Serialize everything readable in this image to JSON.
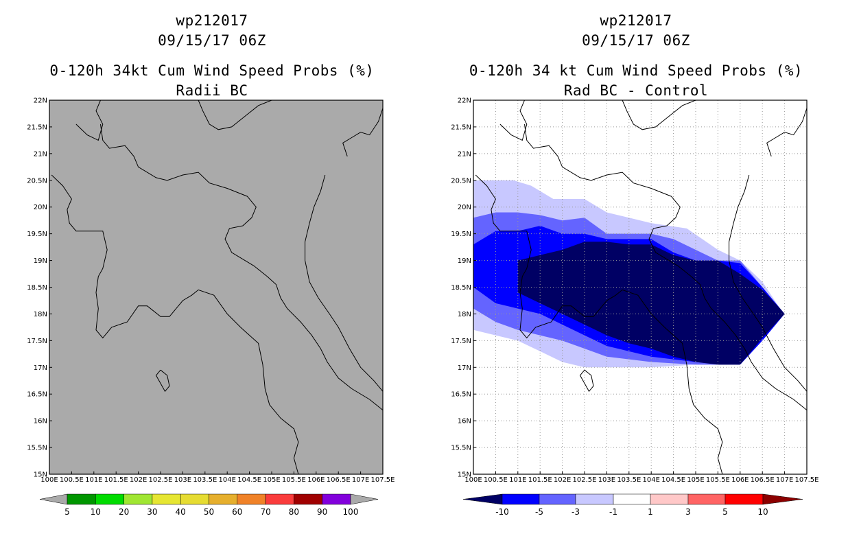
{
  "colors": {
    "land_gray": "#aaaaaa",
    "frame": "#000000",
    "grid": "#999999",
    "diff_neg10": "#000064",
    "diff_neg5": "#0000ff",
    "diff_neg3": "#6464ff",
    "diff_neg1": "#c8c8ff",
    "diff_0": "#ffffff",
    "diff_pos1": "#ffc8c8",
    "diff_pos3": "#ff6464",
    "diff_pos5": "#ff0000",
    "diff_pos10": "#8c0000"
  },
  "left": {
    "title_line1": "wp212017",
    "title_line2": "09/15/17 06Z",
    "title_line3": "0-120h 34kt Cum Wind Speed Probs (%)",
    "title_line4": "Radii BC",
    "colorbar": {
      "labels": [
        "5",
        "10",
        "20",
        "30",
        "40",
        "50",
        "60",
        "70",
        "80",
        "90",
        "100"
      ],
      "colors": [
        "#009600",
        "#00dc00",
        "#a0e632",
        "#e6e632",
        "#e6dc32",
        "#e6af2d",
        "#f08228",
        "#fa3c3c",
        "#a00000",
        "#8200dc"
      ]
    }
  },
  "right": {
    "title_line1": "wp212017",
    "title_line2": "09/15/17 06Z",
    "title_line3": "0-120h 34 kt Cum Wind Speed Probs (%)",
    "title_line4": "Rad BC - Control",
    "colorbar": {
      "labels": [
        "-10",
        "-5",
        "-3",
        "-1",
        "1",
        "3",
        "5",
        "10"
      ],
      "colors": [
        "#000064",
        "#0000ff",
        "#6464ff",
        "#c8c8ff",
        "#ffffff",
        "#ffc8c8",
        "#ff6464",
        "#ff0000"
      ],
      "end_left": "#000064",
      "end_right": "#8c0000"
    }
  },
  "chart_data": [
    {
      "type": "heatmap",
      "title": "0-120h 34kt Cum Wind Speed Probs (%) - Radii BC",
      "x_ticks": [
        "100E",
        "100.5E",
        "101E",
        "101.5E",
        "102E",
        "102.5E",
        "103E",
        "103.5E",
        "104E",
        "104.5E",
        "105E",
        "105.5E",
        "106E",
        "106.5E",
        "107E",
        "107.5E"
      ],
      "y_ticks": [
        "15N",
        "15.5N",
        "16N",
        "16.5N",
        "17N",
        "17.5N",
        "18N",
        "18.5N",
        "19N",
        "19.5N",
        "20N",
        "20.5N",
        "21N",
        "21.5N",
        "22N"
      ],
      "xlim": [
        100,
        107.5
      ],
      "ylim": [
        15,
        22
      ],
      "grid": false,
      "field": "no probability above 5% anywhere in domain (uniform gray)"
    },
    {
      "type": "heatmap",
      "title": "0-120h 34 kt Cum Wind Speed Probs (%) - Rad BC - Control",
      "x_ticks": [
        "100E",
        "100.5E",
        "101E",
        "101.5E",
        "102E",
        "102.5E",
        "103E",
        "103.5E",
        "104E",
        "104.5E",
        "105E",
        "105.5E",
        "106E",
        "106.5E",
        "107E",
        "107.5E"
      ],
      "y_ticks": [
        "15N",
        "15.5N",
        "16N",
        "16.5N",
        "17N",
        "17.5N",
        "18N",
        "18.5N",
        "19N",
        "19.5N",
        "20N",
        "20.5N",
        "21N",
        "21.5N",
        "22N"
      ],
      "xlim": [
        100,
        107.5
      ],
      "ylim": [
        15,
        22
      ],
      "grid": true,
      "levels": [
        {
          "range": "-3 to -1",
          "polygon": [
            [
              100,
              20.5
            ],
            [
              100.9,
              20.5
            ],
            [
              101.3,
              20.4
            ],
            [
              101.8,
              20.15
            ],
            [
              102.5,
              20.15
            ],
            [
              103,
              19.9
            ],
            [
              103.5,
              19.8
            ],
            [
              104,
              19.7
            ],
            [
              104.8,
              19.6
            ],
            [
              105.5,
              19.2
            ],
            [
              106,
              19.0
            ],
            [
              106.5,
              18.6
            ],
            [
              106.9,
              18.1
            ],
            [
              107,
              18
            ],
            [
              106.5,
              17.5
            ],
            [
              106,
              17.05
            ],
            [
              105,
              17.05
            ],
            [
              104,
              17.0
            ],
            [
              103,
              17.0
            ],
            [
              102.5,
              17.0
            ],
            [
              102,
              17.1
            ],
            [
              101.5,
              17.3
            ],
            [
              101,
              17.5
            ],
            [
              100.5,
              17.6
            ],
            [
              100,
              17.7
            ]
          ]
        },
        {
          "range": "-5 to -3",
          "polygon": [
            [
              100,
              19.8
            ],
            [
              100.5,
              19.9
            ],
            [
              101,
              19.9
            ],
            [
              101.5,
              19.85
            ],
            [
              102,
              19.75
            ],
            [
              102.5,
              19.8
            ],
            [
              103,
              19.5
            ],
            [
              103.5,
              19.5
            ],
            [
              104,
              19.5
            ],
            [
              104.5,
              19.4
            ],
            [
              105,
              19.2
            ],
            [
              105.5,
              19.0
            ],
            [
              106,
              19.0
            ],
            [
              106.5,
              18.5
            ],
            [
              106.9,
              18.1
            ],
            [
              107,
              18
            ],
            [
              106.5,
              17.6
            ],
            [
              106,
              17.05
            ],
            [
              105,
              17.05
            ],
            [
              104,
              17.1
            ],
            [
              103,
              17.2
            ],
            [
              102.5,
              17.35
            ],
            [
              102,
              17.5
            ],
            [
              101.5,
              17.6
            ],
            [
              101,
              17.7
            ],
            [
              100.5,
              17.85
            ],
            [
              100,
              18.1
            ]
          ]
        },
        {
          "range": "-10 to -5",
          "polygon": [
            [
              100,
              19.3
            ],
            [
              100.5,
              19.55
            ],
            [
              101,
              19.55
            ],
            [
              101.5,
              19.65
            ],
            [
              102,
              19.5
            ],
            [
              102.5,
              19.5
            ],
            [
              103,
              19.4
            ],
            [
              103.5,
              19.4
            ],
            [
              104,
              19.4
            ],
            [
              104.5,
              19.15
            ],
            [
              105,
              19.0
            ],
            [
              105.5,
              19.0
            ],
            [
              106,
              18.95
            ],
            [
              106.5,
              18.5
            ],
            [
              106.9,
              18.1
            ],
            [
              107,
              18
            ],
            [
              106.5,
              17.5
            ],
            [
              106,
              17.05
            ],
            [
              105,
              17.1
            ],
            [
              104,
              17.2
            ],
            [
              103,
              17.4
            ],
            [
              102.5,
              17.6
            ],
            [
              102,
              17.8
            ],
            [
              101.5,
              18.0
            ],
            [
              101,
              18.1
            ],
            [
              100.5,
              18.2
            ],
            [
              100,
              18.5
            ]
          ]
        },
        {
          "range": "< -10",
          "polygon": [
            [
              101,
              19.0
            ],
            [
              101.5,
              19.1
            ],
            [
              102,
              19.2
            ],
            [
              102.5,
              19.35
            ],
            [
              103,
              19.35
            ],
            [
              103.5,
              19.3
            ],
            [
              104,
              19.3
            ],
            [
              104.5,
              19.1
            ],
            [
              105,
              19.0
            ],
            [
              105.5,
              19.0
            ],
            [
              106,
              18.75
            ],
            [
              106.5,
              18.45
            ],
            [
              106.9,
              18.1
            ],
            [
              107,
              18
            ],
            [
              106.5,
              17.55
            ],
            [
              106,
              17.05
            ],
            [
              105.5,
              17.05
            ],
            [
              105,
              17.1
            ],
            [
              104.5,
              17.2
            ],
            [
              104,
              17.35
            ],
            [
              103.5,
              17.45
            ],
            [
              103,
              17.6
            ],
            [
              102.5,
              17.8
            ],
            [
              102,
              18.0
            ],
            [
              101.5,
              18.2
            ],
            [
              101,
              18.4
            ]
          ]
        }
      ]
    }
  ]
}
